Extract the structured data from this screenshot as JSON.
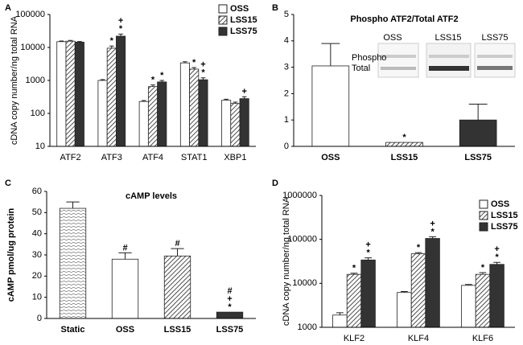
{
  "chart_data": [
    {
      "type": "bar",
      "panel": "A",
      "ylabel": "cDNA copy number/ng total RNA",
      "log_scale": true,
      "legend": "top-right",
      "ylim": [
        10,
        100000
      ],
      "yticks": [
        10,
        100,
        1000,
        10000,
        100000
      ],
      "categories": [
        "ATF2",
        "ATF3",
        "ATF4",
        "STAT1",
        "XBP1"
      ],
      "series": [
        {
          "name": "OSS",
          "color": "#ffffff",
          "values": [
            15000,
            1000,
            230,
            3400,
            250
          ],
          "errors": [
            700,
            60,
            15,
            300,
            20
          ]
        },
        {
          "name": "LSS15",
          "color": "#ffffff",
          "pattern": "hatch",
          "values": [
            15500,
            9500,
            650,
            2200,
            200
          ],
          "errors": [
            800,
            1500,
            80,
            250,
            20
          ],
          "annotations": [
            null,
            [
              "*"
            ],
            [
              "*"
            ],
            [
              "*"
            ],
            null
          ]
        },
        {
          "name": "LSS75",
          "color": "#333333",
          "values": [
            14500,
            22000,
            900,
            1050,
            280
          ],
          "errors": [
            600,
            3500,
            100,
            150,
            40
          ],
          "annotations": [
            null,
            [
              "+",
              "*"
            ],
            [
              "*"
            ],
            [
              "+",
              "*"
            ],
            [
              "+"
            ]
          ]
        }
      ]
    },
    {
      "type": "bar",
      "panel": "B",
      "title": "Phospho ATF2/Total ATF2",
      "ylim": [
        0,
        5
      ],
      "yticks": [
        0,
        1,
        2,
        3,
        4,
        5
      ],
      "categories": [
        "OSS",
        "LSS15",
        "LSS75"
      ],
      "series": [
        {
          "colors": [
            "#ffffff",
            "#ffffff",
            "#333333"
          ],
          "patterns": [
            null,
            "hatch",
            null
          ],
          "values": [
            3.05,
            0.15,
            1.0
          ],
          "errors": [
            0.85,
            null,
            0.6
          ],
          "annotations": [
            null,
            [
              "*"
            ],
            null
          ]
        }
      ],
      "blot": {
        "lanes": [
          "OSS",
          "LSS15",
          "LSS75"
        ],
        "rows": [
          "Phospho",
          "Total"
        ]
      }
    },
    {
      "type": "bar",
      "panel": "C",
      "title": "cAMP levels",
      "ylabel": "cAMP pmol/ug protein",
      "ylim": [
        0,
        60
      ],
      "yticks": [
        0,
        10,
        20,
        30,
        40,
        50,
        60
      ],
      "categories": [
        "Static",
        "OSS",
        "LSS15",
        "LSS75"
      ],
      "series": [
        {
          "colors": [
            "#ffffff",
            "#ffffff",
            "#ffffff",
            "#333333"
          ],
          "patterns": [
            "wave",
            null,
            "hatch",
            null
          ],
          "values": [
            52,
            28,
            29.5,
            3
          ],
          "errors": [
            3,
            3,
            3.5,
            null
          ],
          "annotations": [
            null,
            [
              "#"
            ],
            [
              "#"
            ],
            [
              "#",
              "+",
              "*"
            ]
          ]
        }
      ]
    },
    {
      "type": "bar",
      "panel": "D",
      "ylabel": "cDNA copy number/ng total RNA",
      "log_scale": true,
      "legend": "top-right",
      "ylim": [
        1000,
        1000000
      ],
      "yticks": [
        1000,
        10000,
        100000,
        1000000
      ],
      "categories": [
        "KLF2",
        "KLF4",
        "KLF6"
      ],
      "series": [
        {
          "name": "OSS",
          "color": "#ffffff",
          "values": [
            1900,
            6200,
            9000
          ],
          "errors": [
            250,
            300,
            400
          ]
        },
        {
          "name": "LSS15",
          "color": "#ffffff",
          "pattern": "hatch",
          "values": [
            16000,
            47000,
            16000
          ],
          "errors": [
            1000,
            3000,
            1500
          ],
          "annotations": [
            [
              "*"
            ],
            [
              "*"
            ],
            [
              "*"
            ]
          ]
        },
        {
          "name": "LSS75",
          "color": "#333333",
          "values": [
            34000,
            105000,
            27000
          ],
          "errors": [
            4000,
            10000,
            3000
          ],
          "annotations": [
            [
              "+",
              "*"
            ],
            [
              "+",
              "*"
            ],
            [
              "+",
              "*"
            ]
          ]
        }
      ]
    }
  ]
}
